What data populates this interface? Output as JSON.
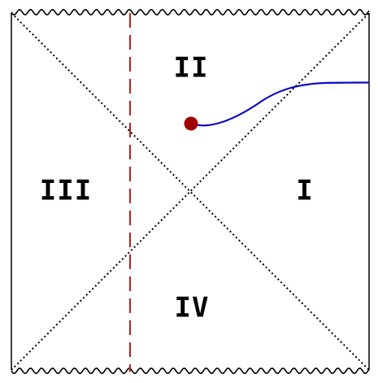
{
  "diagram": {
    "regions": [
      {
        "id": "I",
        "label": "I"
      },
      {
        "id": "II",
        "label": "II"
      },
      {
        "id": "III",
        "label": "III"
      },
      {
        "id": "IV",
        "label": "IV"
      }
    ],
    "colors": {
      "boundary": "#000000",
      "horizon": "#000000",
      "singularity": "#000000",
      "observer_line": "#b22222",
      "trajectory": "#0b0bc8",
      "endpoint": "#a30000"
    }
  }
}
